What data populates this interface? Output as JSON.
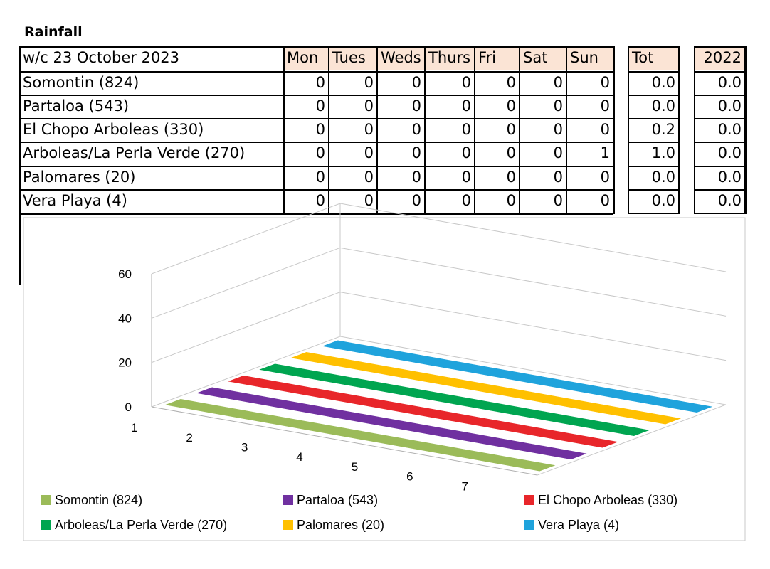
{
  "title": "Rainfall",
  "table": {
    "corner": "w/c 23 October 2023",
    "days": [
      "Mon",
      "Tues",
      "Weds",
      "Thurs",
      "Fri",
      "Sat",
      "Sun"
    ],
    "tot_label": "Tot",
    "prev_label": "2022",
    "rows": [
      {
        "name": "Somontin (824)",
        "values": [
          "0",
          "0",
          "0",
          "0",
          "0",
          "0",
          "0"
        ],
        "tot": "0.0",
        "prev": "0.0"
      },
      {
        "name": "Partaloa (543)",
        "values": [
          "0",
          "0",
          "0",
          "0",
          "0",
          "0",
          "0"
        ],
        "tot": "0.0",
        "prev": "0.0"
      },
      {
        "name": "El Chopo Arboleas (330)",
        "values": [
          "0",
          "0",
          "0",
          "0",
          "0",
          "0",
          "0"
        ],
        "tot": "0.2",
        "prev": "0.0"
      },
      {
        "name": "Arboleas/La Perla Verde (270)",
        "values": [
          "0",
          "0",
          "0",
          "0",
          "0",
          "0",
          "1"
        ],
        "tot": "1.0",
        "prev": "0.0"
      },
      {
        "name": "Palomares (20)",
        "values": [
          "0",
          "0",
          "0",
          "0",
          "0",
          "0",
          "0"
        ],
        "tot": "0.0",
        "prev": "0.0"
      },
      {
        "name": "Vera Playa (4)",
        "values": [
          "0",
          "0",
          "0",
          "0",
          "0",
          "0",
          "0"
        ],
        "tot": "0.0",
        "prev": "0.0"
      }
    ]
  },
  "chart_data": {
    "type": "area",
    "style": "3d-stacked-depth",
    "x": [
      1,
      2,
      3,
      4,
      5,
      6,
      7
    ],
    "y_ticks": [
      "0",
      "20",
      "40",
      "60"
    ],
    "ylim": [
      0,
      60
    ],
    "grid": true,
    "legend_position": "bottom",
    "series": [
      {
        "name": "Somontin (824)",
        "color": "#9bbb59",
        "values": [
          0,
          0,
          0,
          0,
          0,
          0,
          0
        ]
      },
      {
        "name": "Partaloa (543)",
        "color": "#7030a0",
        "values": [
          0,
          0,
          0,
          0,
          0,
          0,
          0
        ]
      },
      {
        "name": "El Chopo Arboleas (330)",
        "color": "#e8262a",
        "values": [
          0,
          0,
          0,
          0,
          0,
          0,
          0
        ]
      },
      {
        "name": "Arboleas/La Perla Verde (270)",
        "color": "#00a550",
        "values": [
          0,
          0,
          0,
          0,
          0,
          0,
          1
        ]
      },
      {
        "name": "Palomares (20)",
        "color": "#ffc000",
        "values": [
          0,
          0,
          0,
          0,
          0,
          0,
          0
        ]
      },
      {
        "name": "Vera Playa (4)",
        "color": "#1fa3dc",
        "values": [
          0,
          0,
          0,
          0,
          0,
          0,
          0
        ]
      }
    ]
  }
}
